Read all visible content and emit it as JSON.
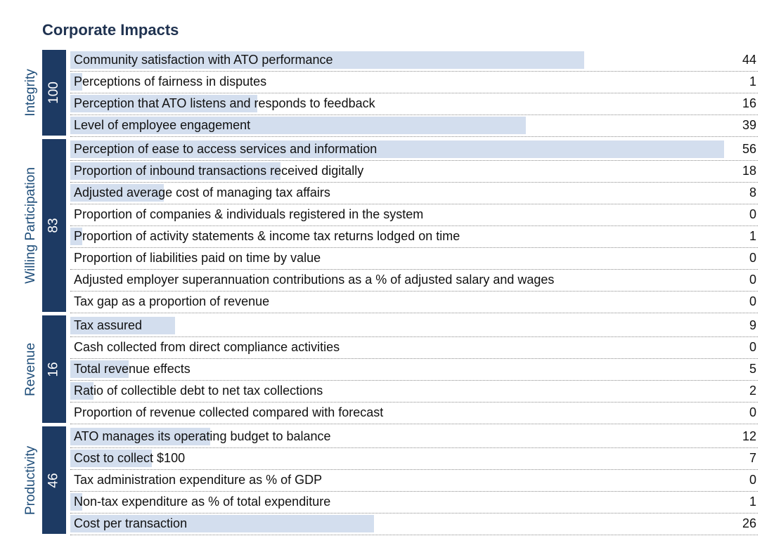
{
  "title": "Corporate Impacts",
  "colors": {
    "group_bar": "#1d3a63",
    "group_label": "#1f4e7a",
    "row_bar": "#d3deee",
    "title": "#1f3250"
  },
  "chart_data": {
    "type": "bar",
    "orientation": "horizontal",
    "title": "Corporate Impacts",
    "xlim": [
      0,
      56
    ],
    "grid": false,
    "groups": [
      {
        "name": "Integrity",
        "score": "100",
        "rows": [
          {
            "label": "Community satisfaction with ATO performance",
            "value": 44
          },
          {
            "label": "Perceptions of fairness in disputes",
            "value": 1
          },
          {
            "label": "Perception that ATO listens and responds to feedback",
            "value": 16
          },
          {
            "label": "Level of employee engagement",
            "value": 39
          }
        ]
      },
      {
        "name": "Willing Participation",
        "score": "83",
        "rows": [
          {
            "label": "Perception of ease to access services and information",
            "value": 56
          },
          {
            "label": "Proportion of inbound transactions received digitally",
            "value": 18
          },
          {
            "label": "Adjusted average cost of managing tax affairs",
            "value": 8
          },
          {
            "label": "Proportion of companies & individuals registered in the system",
            "value": 0
          },
          {
            "label": "Proportion of activity statements & income tax returns lodged on time",
            "value": 1
          },
          {
            "label": "Proportion of liabilities paid on time by value",
            "value": 0
          },
          {
            "label": "Adjusted employer superannuation contributions as a % of adjusted salary and wages",
            "value": 0
          },
          {
            "label": "Tax gap as a proportion of revenue",
            "value": 0
          }
        ]
      },
      {
        "name": "Revenue",
        "score": "16",
        "rows": [
          {
            "label": "Tax assured",
            "value": 9
          },
          {
            "label": "Cash collected from direct compliance activities",
            "value": 0
          },
          {
            "label": "Total revenue effects",
            "value": 5
          },
          {
            "label": "Ratio of collectible debt to net tax collections",
            "value": 2
          },
          {
            "label": "Proportion of revenue collected compared with forecast",
            "value": 0
          }
        ]
      },
      {
        "name": "Productivity",
        "score": "46",
        "rows": [
          {
            "label": "ATO manages its operating budget to balance",
            "value": 12
          },
          {
            "label": "Cost to collect $100",
            "value": 7
          },
          {
            "label": "Tax administration expenditure as % of GDP",
            "value": 0
          },
          {
            "label": "Non-tax expenditure as % of total expenditure",
            "value": 1
          },
          {
            "label": "Cost per transaction",
            "value": 26
          }
        ]
      }
    ]
  }
}
